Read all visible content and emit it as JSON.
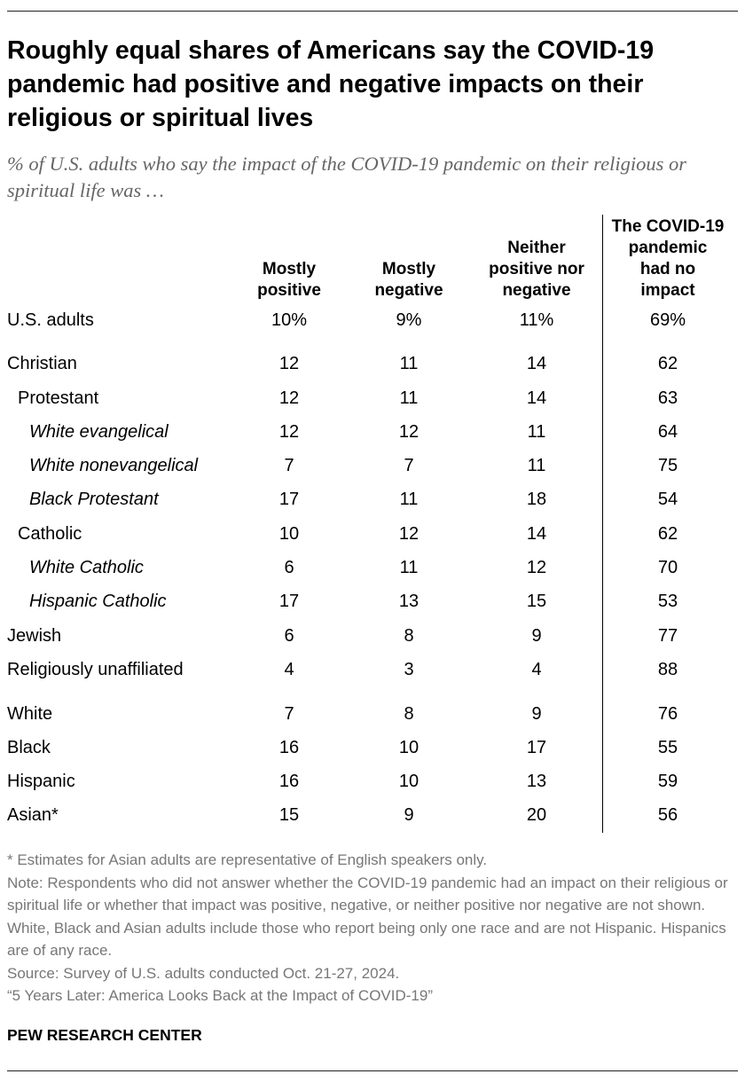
{
  "title": "Roughly equal shares of Americans say the COVID-19 pandemic had positive and negative impacts on their religious or spiritual lives",
  "subtitle": "% of U.S. adults who say the impact of the COVID-19 pandemic on their religious or spiritual life was …",
  "columns": [
    [
      "Mostly",
      "positive"
    ],
    [
      "Mostly",
      "negative"
    ],
    [
      "Neither",
      "positive nor",
      "negative"
    ],
    [
      "The COVID-19",
      "pandemic",
      "had no",
      "impact"
    ]
  ],
  "chart_data": {
    "type": "table",
    "columns": [
      "Mostly positive",
      "Mostly negative",
      "Neither positive nor negative",
      "The COVID-19 pandemic had no impact"
    ],
    "rows": [
      {
        "label": "U.S. adults",
        "indent": 0,
        "values": [
          "10%",
          "9%",
          "11%",
          "69%"
        ]
      },
      {
        "label": "Christian",
        "indent": 0,
        "values": [
          "12",
          "11",
          "14",
          "62"
        ]
      },
      {
        "label": "Protestant",
        "indent": 1,
        "values": [
          "12",
          "11",
          "14",
          "63"
        ]
      },
      {
        "label": "White evangelical",
        "indent": 2,
        "values": [
          "12",
          "12",
          "11",
          "64"
        ]
      },
      {
        "label": "White nonevangelical",
        "indent": 2,
        "values": [
          "7",
          "7",
          "11",
          "75"
        ]
      },
      {
        "label": "Black Protestant",
        "indent": 2,
        "values": [
          "17",
          "11",
          "18",
          "54"
        ]
      },
      {
        "label": "Catholic",
        "indent": 1,
        "values": [
          "10",
          "12",
          "14",
          "62"
        ]
      },
      {
        "label": "White Catholic",
        "indent": 2,
        "values": [
          "6",
          "11",
          "12",
          "70"
        ]
      },
      {
        "label": "Hispanic Catholic",
        "indent": 2,
        "values": [
          "17",
          "13",
          "15",
          "53"
        ]
      },
      {
        "label": "Jewish",
        "indent": 0,
        "values": [
          "6",
          "8",
          "9",
          "77"
        ]
      },
      {
        "label": "Religiously unaffiliated",
        "indent": 0,
        "values": [
          "4",
          "3",
          "4",
          "88"
        ]
      },
      {
        "label": "White",
        "indent": 0,
        "values": [
          "7",
          "8",
          "9",
          "76"
        ]
      },
      {
        "label": "Black",
        "indent": 0,
        "values": [
          "16",
          "10",
          "17",
          "55"
        ]
      },
      {
        "label": "Hispanic",
        "indent": 0,
        "values": [
          "16",
          "10",
          "13",
          "59"
        ]
      },
      {
        "label": "Asian*",
        "indent": 0,
        "values": [
          "15",
          "9",
          "20",
          "56"
        ]
      }
    ]
  },
  "notes": {
    "footnote": "* Estimates for Asian adults are representative of English speakers only.",
    "note": "Note: Respondents who did not answer whether the COVID-19 pandemic had an impact on their religious or spiritual life or whether that impact was positive, negative, or neither positive nor negative are not shown. White, Black and Asian adults include those who report being only one race and are not Hispanic. Hispanics are of any race.",
    "source": "Source: Survey of U.S. adults conducted Oct. 21-27, 2024.",
    "report": "“5 Years Later: America Looks Back at the Impact of COVID-19”"
  },
  "organization": "PEW RESEARCH CENTER"
}
